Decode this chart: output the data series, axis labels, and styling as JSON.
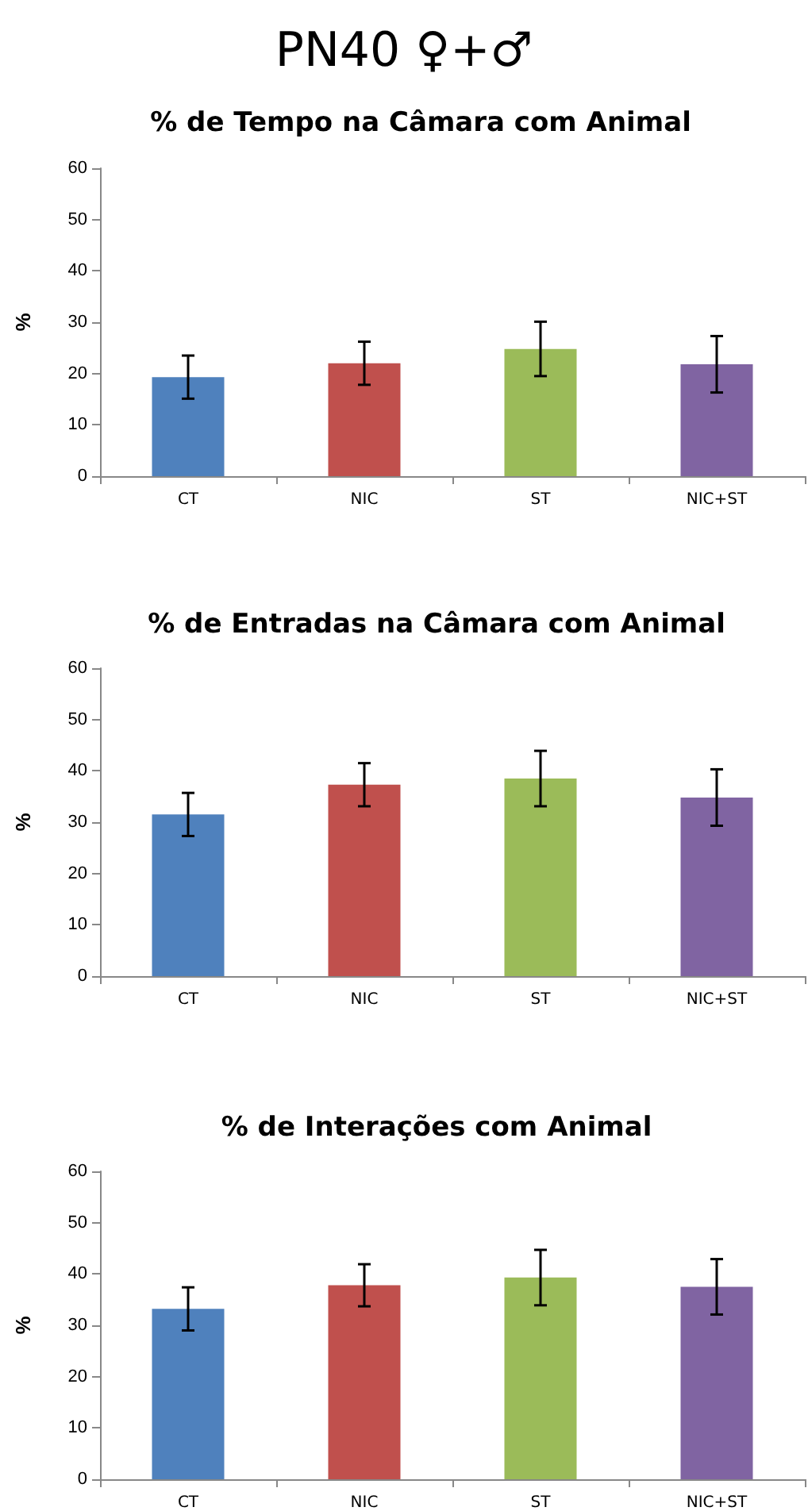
{
  "chart_data": [
    {
      "type": "bar",
      "title": "PN40 ♀+♂",
      "subtitle": "% de Tempo na Câmara com Animal",
      "ylabel": "%",
      "categories": [
        "CT",
        "NIC",
        "ST",
        "NIC+ST"
      ],
      "values": [
        19.3,
        22,
        24.8,
        21.8
      ],
      "errors": [
        4.2,
        4.2,
        5.3,
        5.5
      ],
      "colors": [
        "#4f81bd",
        "#c0504d",
        "#9bbb59",
        "#8064a2"
      ],
      "ylim": [
        0,
        60
      ],
      "yticks": [
        0,
        10,
        20,
        30,
        40,
        50,
        60
      ],
      "grid": false
    },
    {
      "type": "bar",
      "title": "% de Entradas na Câmara com Animal",
      "ylabel": "%",
      "categories": [
        "CT",
        "NIC",
        "ST",
        "NIC+ST"
      ],
      "values": [
        31.5,
        37.3,
        38.5,
        34.8
      ],
      "errors": [
        4.2,
        4.2,
        5.4,
        5.5
      ],
      "colors": [
        "#4f81bd",
        "#c0504d",
        "#9bbb59",
        "#8064a2"
      ],
      "ylim": [
        0,
        60
      ],
      "yticks": [
        0,
        10,
        20,
        30,
        40,
        50,
        60
      ],
      "grid": false
    },
    {
      "type": "bar",
      "title": "% de Interações com Animal",
      "ylabel": "%",
      "categories": [
        "CT",
        "NIC",
        "ST",
        "NIC+ST"
      ],
      "values": [
        33.2,
        37.8,
        39.3,
        37.5
      ],
      "errors": [
        4.2,
        4.1,
        5.4,
        5.4
      ],
      "colors": [
        "#4f81bd",
        "#c0504d",
        "#9bbb59",
        "#8064a2"
      ],
      "ylim": [
        0,
        60
      ],
      "yticks": [
        0,
        10,
        20,
        30,
        40,
        50,
        60
      ],
      "grid": false
    }
  ]
}
